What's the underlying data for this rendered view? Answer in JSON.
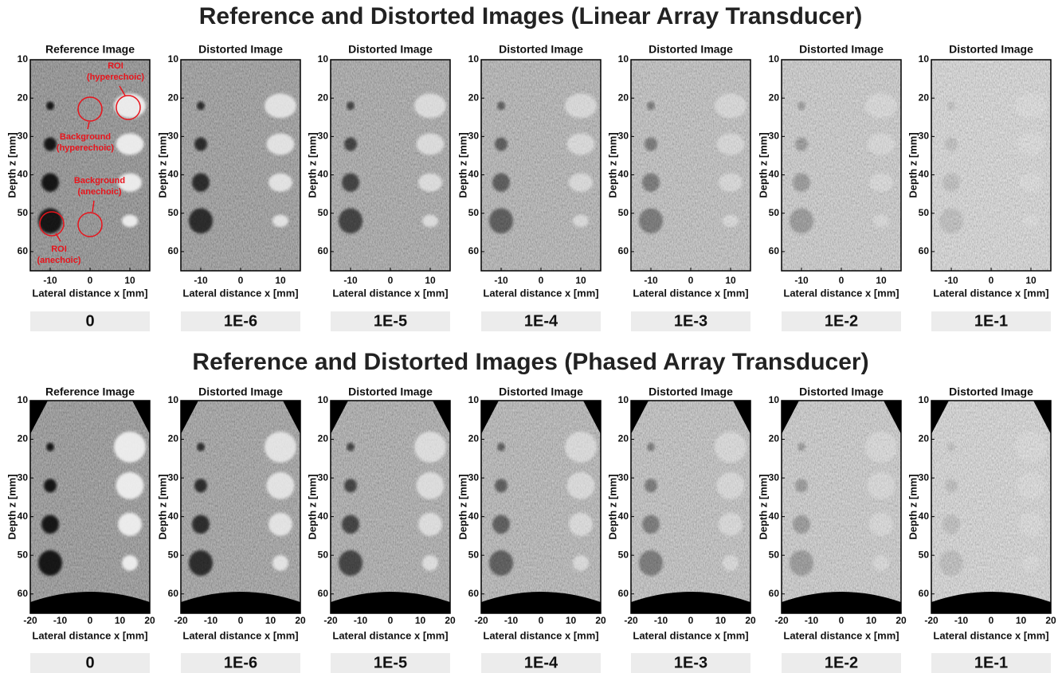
{
  "sections": [
    {
      "title": "Reference and Distorted Images (Linear Array Transducer)",
      "panel_titles": [
        "Reference Image",
        "Distorted Image",
        "Distorted Image",
        "Distorted Image",
        "Distorted Image",
        "Distorted Image",
        "Distorted Image"
      ],
      "xlabel": "Lateral distance x [mm]",
      "ylabel": "Depth z [mm]",
      "xlim": [
        -15,
        15
      ],
      "ylim": [
        10,
        65
      ],
      "xticks": [
        -10,
        0,
        10
      ],
      "yticks": [
        10,
        20,
        30,
        40,
        50,
        60
      ],
      "levels": [
        "0",
        "1E-6",
        "1E-5",
        "1E-4",
        "1E-3",
        "1E-2",
        "1E-1"
      ],
      "annotations": [
        {
          "lines": [
            "ROI",
            "(hyperechoic)"
          ]
        },
        {
          "lines": [
            "Background",
            "(hyperechoic)"
          ]
        },
        {
          "lines": [
            "Background",
            "(anechoic)"
          ]
        },
        {
          "lines": [
            "ROI",
            "(anechoic)"
          ]
        }
      ]
    },
    {
      "title": "Reference and Distorted Images (Phased Array Transducer)",
      "panel_titles": [
        "Reference Image",
        "Distorted Image",
        "Distorted Image",
        "Distorted Image",
        "Distorted Image",
        "Distorted Image",
        "Distorted Image"
      ],
      "xlabel": "Lateral distance x [mm]",
      "ylabel": "Depth z [mm]",
      "xlim": [
        -20,
        20
      ],
      "ylim": [
        10,
        65
      ],
      "xticks": [
        -20,
        -10,
        0,
        10,
        20
      ],
      "yticks": [
        10,
        20,
        30,
        40,
        50,
        60
      ],
      "levels": [
        "0",
        "1E-6",
        "1E-5",
        "1E-4",
        "1E-3",
        "1E-2",
        "1E-1"
      ]
    }
  ]
}
